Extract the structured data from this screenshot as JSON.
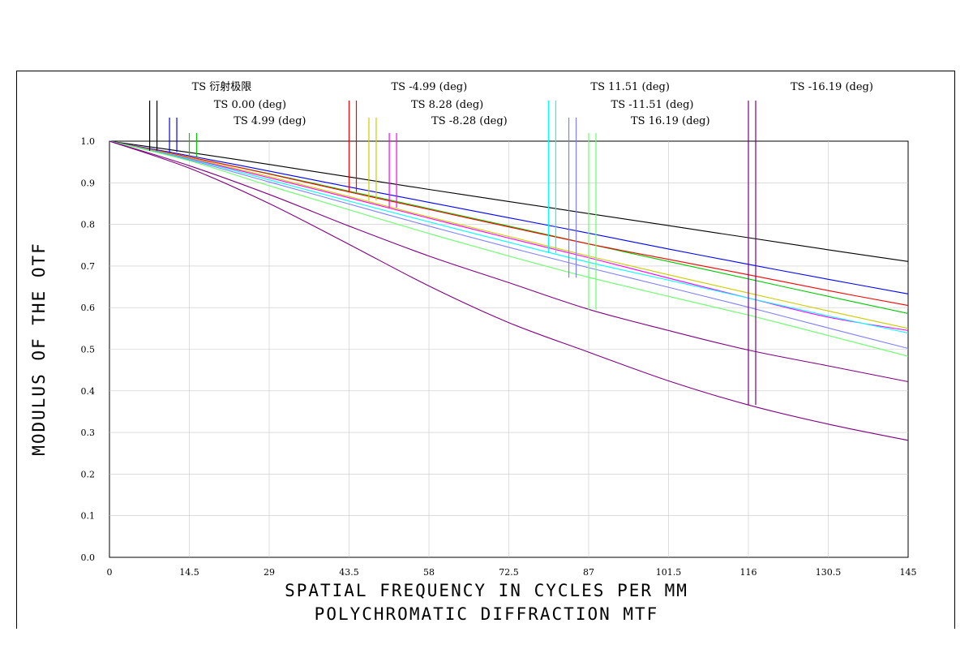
{
  "chart_data": {
    "type": "line",
    "xlabel": "SPATIAL FREQUENCY IN CYCLES PER MM",
    "subtitle": "POLYCHROMATIC DIFFRACTION MTF",
    "ylabel": "MODULUS OF THE OTF",
    "xlim": [
      0,
      145
    ],
    "ylim": [
      0,
      1.0
    ],
    "x_ticks": [
      "0",
      "14.5",
      "29",
      "43.5",
      "58",
      "72.5",
      "87",
      "101.5",
      "116",
      "130.5",
      "145"
    ],
    "y_ticks": [
      "0.0",
      "0.1",
      "0.2",
      "0.3",
      "0.4",
      "0.5",
      "0.6",
      "0.7",
      "0.8",
      "0.9",
      "1.0"
    ],
    "x": [
      0,
      14.5,
      29,
      43.5,
      58,
      72.5,
      87,
      101.5,
      116,
      130.5,
      145
    ],
    "series": [
      {
        "name": "TS 衍射极限",
        "color": "#000000",
        "values": [
          1.0,
          0.973,
          0.944,
          0.914,
          0.884,
          0.855,
          0.826,
          0.797,
          0.768,
          0.739,
          0.711
        ]
      },
      {
        "name": "TS 0.00 (deg)",
        "color": "#0000ff",
        "values": [
          1.0,
          0.965,
          0.928,
          0.89,
          0.853,
          0.816,
          0.779,
          0.741,
          0.704,
          0.668,
          0.633
        ]
      },
      {
        "name": "TS 4.99 (deg)",
        "color": "#00cc00",
        "values": [
          1.0,
          0.962,
          0.922,
          0.88,
          0.838,
          0.796,
          0.753,
          0.711,
          0.669,
          0.627,
          0.586
        ]
      },
      {
        "name": "TS -4.99 (deg)",
        "color": "#ff0000",
        "values": [
          1.0,
          0.962,
          0.921,
          0.878,
          0.836,
          0.794,
          0.753,
          0.716,
          0.679,
          0.641,
          0.605
        ]
      },
      {
        "name": "TS 8.28 (deg)",
        "color": "#cccc00",
        "values": [
          1.0,
          0.96,
          0.915,
          0.867,
          0.818,
          0.771,
          0.724,
          0.679,
          0.635,
          0.592,
          0.55
        ]
      },
      {
        "name": "TS -8.28 (deg)",
        "color": "#ff00ff",
        "values": [
          1.0,
          0.958,
          0.912,
          0.864,
          0.815,
          0.767,
          0.72,
          0.671,
          0.623,
          0.577,
          0.545
        ]
      },
      {
        "name": "TS 11.51 (deg)",
        "color": "#00ffff",
        "values": [
          1.0,
          0.957,
          0.907,
          0.856,
          0.806,
          0.757,
          0.709,
          0.666,
          0.623,
          0.58,
          0.539
        ]
      },
      {
        "name": "TS -11.51 (deg)",
        "color": "#8080ff",
        "values": [
          1.0,
          0.955,
          0.902,
          0.849,
          0.796,
          0.745,
          0.696,
          0.649,
          0.601,
          0.551,
          0.502
        ]
      },
      {
        "name": "TS 16.19 (deg)",
        "color": "#66ff66",
        "values": [
          1.0,
          0.953,
          0.893,
          0.835,
          0.778,
          0.724,
          0.673,
          0.627,
          0.582,
          0.533,
          0.483
        ]
      },
      {
        "name": "TS -16.19 (deg)",
        "color": "#800080",
        "values": [
          1.0,
          0.941,
          0.872,
          0.796,
          0.724,
          0.66,
          0.596,
          0.545,
          0.498,
          0.46,
          0.422
        ]
      },
      {
        "name": "TS -16.19 (deg)",
        "color": "#800080",
        "values": [
          1.0,
          0.935,
          0.85,
          0.752,
          0.652,
          0.564,
          0.493,
          0.424,
          0.366,
          0.32,
          0.281
        ]
      }
    ],
    "legend_markers": [
      {
        "label": "TS 衍射极限",
        "color": "#000000",
        "x": 7.3,
        "y": 0.977,
        "label_x": 7.3,
        "row": 0
      },
      {
        "label": "TS 0.00 (deg)",
        "color": "#0000ff",
        "x": 10.9,
        "y": 0.974,
        "label_x": 11.3,
        "row": 1
      },
      {
        "label": "TS 4.99 (deg)",
        "color": "#00cc00",
        "x": 14.5,
        "y": 0.962,
        "label_x": 14.9,
        "row": 2
      },
      {
        "label": "TS -4.99 (deg)",
        "color": "#ff0000",
        "x": 43.5,
        "y": 0.878,
        "label_x": 43.5,
        "row": 0
      },
      {
        "label": "TS 8.28 (deg)",
        "color": "#cccc00",
        "x": 47.1,
        "y": 0.857,
        "label_x": 47.1,
        "row": 1
      },
      {
        "label": "TS -8.28 (deg)",
        "color": "#ff00ff",
        "x": 50.8,
        "y": 0.84,
        "label_x": 50.8,
        "row": 2
      },
      {
        "label": "TS 11.51 (deg)",
        "color": "#00ffff",
        "x": 79.7,
        "y": 0.731,
        "label_x": 79.7,
        "row": 0
      },
      {
        "label": "TS -11.51 (deg)",
        "color": "#8080ff",
        "x": 83.4,
        "y": 0.672,
        "label_x": 83.4,
        "row": 1
      },
      {
        "label": "TS 16.19 (deg)",
        "color": "#66ff66",
        "x": 87.0,
        "y": 0.595,
        "label_x": 87.0,
        "row": 2
      },
      {
        "label": "TS -16.19 (deg)",
        "color": "#800080",
        "x": 116.0,
        "y": 0.366,
        "label_x": 116.0,
        "row": 0
      }
    ]
  }
}
